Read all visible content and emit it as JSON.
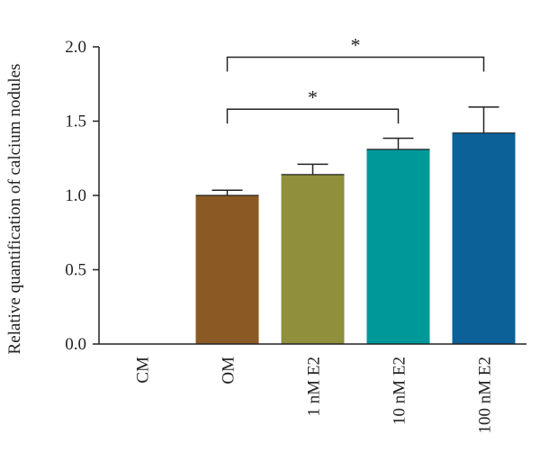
{
  "chart_data": {
    "type": "bar",
    "title": "",
    "xlabel": "",
    "ylabel": "Relative quantification of calcium nodules",
    "categories": [
      "CM",
      "OM",
      "1 nM E2",
      "10 nM E2",
      "100 nM E2"
    ],
    "values": [
      0.0,
      1.0,
      1.14,
      1.31,
      1.42
    ],
    "errors": [
      0.0,
      0.035,
      0.07,
      0.075,
      0.175
    ],
    "colors": [
      "#ffffff",
      "#8b5a24",
      "#8f8f3c",
      "#00999a",
      "#0d6199"
    ],
    "ylim": [
      0,
      2.0
    ],
    "yticks": [
      "0.0",
      "0.5",
      "1.0",
      "1.5",
      "2.0"
    ],
    "yticks_values": [
      0,
      0.5,
      1.0,
      1.5,
      2.0
    ],
    "grid": false,
    "legend": "none",
    "significance": [
      {
        "from": 1,
        "to": 3,
        "label": "*",
        "y": 1.58
      },
      {
        "from": 1,
        "to": 4,
        "label": "*",
        "y": 1.93
      }
    ]
  }
}
